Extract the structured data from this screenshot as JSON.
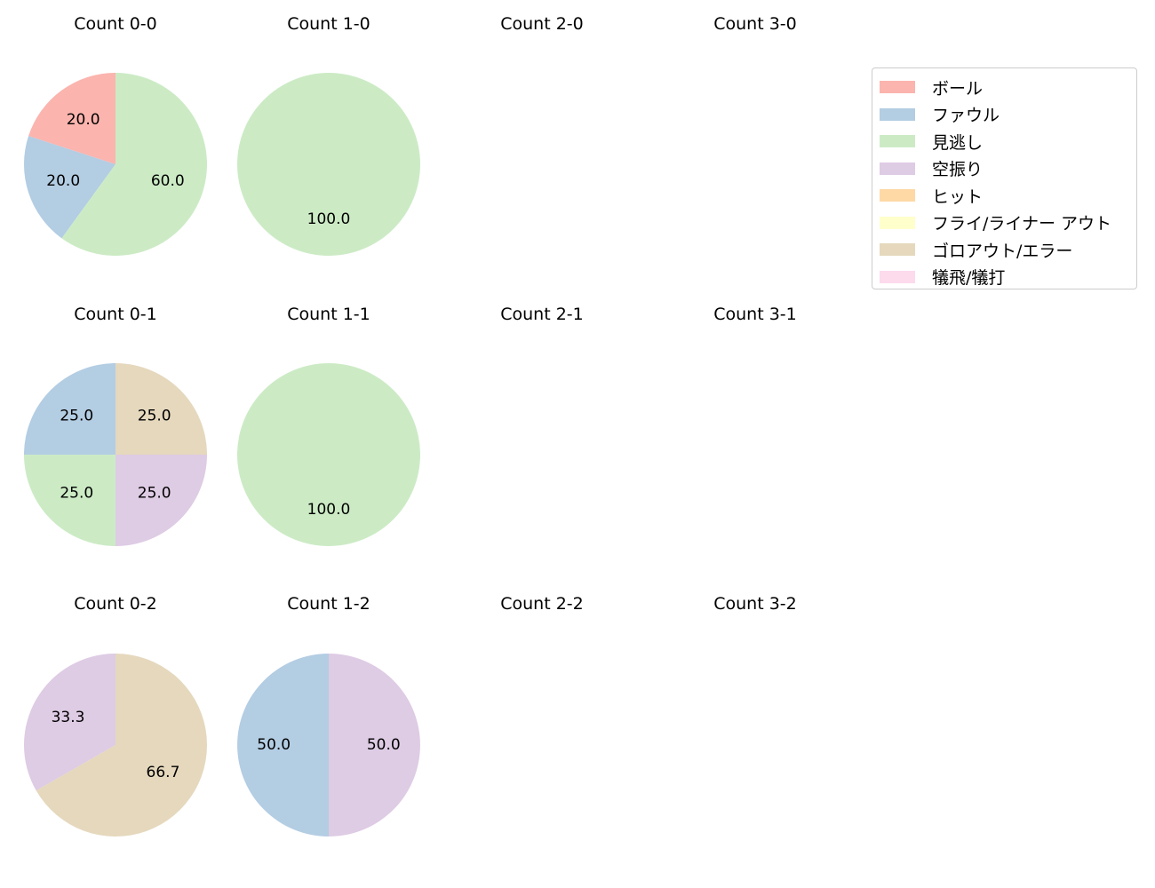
{
  "chart_data": {
    "type": "pie",
    "categories": [
      "ボール",
      "ファウル",
      "見逃し",
      "空振り",
      "ヒット",
      "フライ/ライナー アウト",
      "ゴロアウト/エラー",
      "犠飛/犠打"
    ],
    "colors": [
      "#fbb4ae",
      "#b3cde3",
      "#ccebc5",
      "#decbe4",
      "#fed9a6",
      "#ffffcc",
      "#e5d8bd",
      "#fddaec"
    ],
    "legend_placement": "upper right",
    "panels": [
      {
        "title": "Count 0-0",
        "values": [
          20.0,
          20.0,
          60.0,
          0,
          0,
          0,
          0,
          0
        ]
      },
      {
        "title": "Count 1-0",
        "values": [
          0,
          0,
          100.0,
          0,
          0,
          0,
          0,
          0
        ]
      },
      {
        "title": "Count 2-0",
        "values": []
      },
      {
        "title": "Count 3-0",
        "values": []
      },
      {
        "title": "Count 0-1",
        "values": [
          0,
          25.0,
          25.0,
          25.0,
          0,
          0,
          25.0,
          0
        ]
      },
      {
        "title": "Count 1-1",
        "values": [
          0,
          0,
          100.0,
          0,
          0,
          0,
          0,
          0
        ]
      },
      {
        "title": "Count 2-1",
        "values": []
      },
      {
        "title": "Count 3-1",
        "values": []
      },
      {
        "title": "Count 0-2",
        "values": [
          0,
          0,
          0,
          33.3,
          0,
          0,
          66.7,
          0
        ]
      },
      {
        "title": "Count 1-2",
        "values": [
          0,
          50.0,
          0,
          50.0,
          0,
          0,
          0,
          0
        ]
      },
      {
        "title": "Count 2-2",
        "values": []
      },
      {
        "title": "Count 3-2",
        "values": []
      }
    ]
  }
}
